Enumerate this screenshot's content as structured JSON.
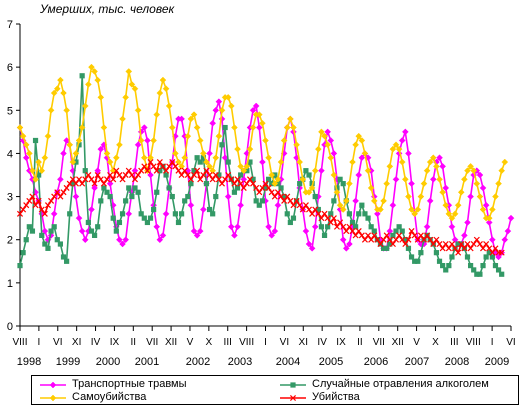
{
  "chart_data": {
    "type": "line",
    "ylabel": "Умерших, тыс. человек",
    "ylim": [
      0,
      7
    ],
    "yticks": [
      0,
      1,
      2,
      3,
      4,
      5,
      6,
      7
    ],
    "grid": false,
    "legend_position": "bottom",
    "start_month_label": "VIII 1998",
    "month_ticks": [
      "VIII",
      "I",
      "VI",
      "XI",
      "IV",
      "IX",
      "II",
      "VII",
      "XII",
      "V",
      "X",
      "III",
      "VIII",
      "I",
      "VI",
      "XI",
      "IV",
      "IX",
      "II",
      "VII",
      "XII",
      "V",
      "X",
      "III",
      "VIII",
      "I",
      "VI"
    ],
    "year_labels": [
      "1998",
      "1999",
      "2000",
      "2001",
      "2002",
      "2003",
      "2004",
      "2005",
      "2006",
      "2007",
      "2008",
      "2009"
    ],
    "series": [
      {
        "name": "Транспортные травмы",
        "color": "#ff00ff",
        "marker": "diamond",
        "values": [
          4.6,
          4.3,
          3.9,
          3.6,
          3.4,
          3.1,
          2.9,
          2.6,
          2.2,
          2.0,
          2.1,
          2.6,
          3.1,
          3.4,
          4.0,
          4.3,
          4.2,
          3.6,
          3.0,
          2.5,
          2.2,
          2.0,
          2.2,
          2.7,
          3.2,
          3.6,
          4.1,
          4.2,
          3.9,
          3.3,
          2.8,
          2.3,
          2.0,
          1.9,
          2.0,
          2.6,
          3.1,
          3.6,
          4.2,
          4.5,
          4.6,
          4.3,
          3.5,
          2.8,
          2.3,
          2.0,
          2.1,
          2.6,
          3.2,
          3.8,
          4.4,
          4.8,
          4.8,
          4.4,
          3.6,
          2.8,
          2.2,
          2.1,
          2.2,
          2.7,
          3.3,
          4.0,
          4.7,
          5.0,
          5.2,
          4.8,
          3.9,
          3.0,
          2.3,
          2.1,
          2.3,
          2.8,
          3.4,
          4.0,
          4.6,
          5.0,
          5.1,
          4.6,
          3.8,
          2.9,
          2.3,
          2.1,
          2.2,
          2.8,
          3.4,
          4.0,
          4.6,
          4.8,
          4.5,
          3.9,
          3.2,
          2.7,
          2.2,
          1.9,
          1.8,
          2.3,
          3.0,
          3.6,
          4.2,
          4.5,
          4.3,
          4.0,
          3.4,
          2.7,
          2.0,
          1.8,
          1.9,
          2.3,
          2.9,
          3.5,
          3.9,
          4.0,
          3.9,
          3.6,
          3.0,
          2.6,
          2.0,
          1.8,
          1.8,
          2.2,
          2.8,
          3.4,
          4.0,
          4.3,
          4.5,
          4.0,
          3.3,
          2.6,
          2.0,
          1.9,
          1.9,
          2.3,
          2.9,
          3.4,
          3.8,
          3.9,
          3.7,
          3.2,
          2.8,
          2.3,
          2.0,
          1.9,
          1.9,
          2.1,
          2.4,
          3.0,
          3.5,
          3.6,
          3.5,
          3.2,
          2.8,
          2.4,
          2.0,
          1.7,
          1.6,
          1.7,
          2.0,
          2.2,
          2.5
        ]
      },
      {
        "name": "Случайные отравления алкоголем",
        "color": "#339966",
        "marker": "square",
        "values": [
          1.4,
          1.7,
          2.0,
          2.3,
          2.2,
          4.3,
          3.5,
          2.1,
          1.9,
          1.8,
          2.2,
          2.3,
          2.0,
          1.9,
          1.6,
          1.5,
          2.6,
          3.3,
          3.8,
          4.2,
          5.8,
          3.6,
          2.4,
          2.2,
          2.1,
          2.3,
          2.9,
          3.2,
          3.1,
          3.0,
          2.5,
          2.2,
          2.4,
          2.6,
          2.9,
          3.2,
          3.0,
          3.2,
          3.1,
          2.6,
          2.5,
          2.4,
          2.5,
          2.7,
          3.1,
          3.6,
          3.7,
          3.5,
          3.2,
          3.0,
          2.6,
          2.4,
          2.6,
          2.9,
          3.0,
          3.3,
          3.6,
          3.9,
          3.8,
          3.9,
          3.3,
          2.7,
          2.6,
          3.0,
          3.5,
          4.2,
          4.6,
          3.8,
          3.4,
          3.1,
          3.2,
          3.5,
          3.6,
          3.6,
          3.8,
          3.4,
          2.9,
          2.8,
          2.9,
          3.2,
          3.4,
          3.3,
          3.5,
          3.3,
          3.2,
          3.0,
          2.6,
          2.4,
          2.5,
          2.9,
          3.3,
          3.4,
          3.6,
          3.5,
          3.3,
          3.0,
          2.7,
          2.3,
          2.1,
          2.3,
          2.6,
          2.9,
          3.2,
          3.4,
          3.3,
          2.9,
          2.6,
          2.4,
          2.3,
          2.6,
          2.8,
          2.6,
          2.5,
          2.3,
          2.2,
          2.0,
          1.9,
          1.8,
          1.8,
          1.9,
          2.1,
          2.2,
          2.3,
          2.2,
          2.0,
          1.8,
          1.6,
          1.5,
          1.5,
          1.7,
          2.0,
          2.1,
          2.0,
          1.9,
          1.7,
          1.5,
          1.4,
          1.3,
          1.4,
          1.6,
          1.8,
          1.9,
          1.9,
          1.8,
          1.6,
          1.4,
          1.3,
          1.2,
          1.2,
          1.4,
          1.6,
          1.7,
          1.6,
          1.4,
          1.3,
          1.2
        ]
      },
      {
        "name": "Самоубийства",
        "color": "#ffcc00",
        "marker": "diamond",
        "values": [
          4.6,
          4.4,
          4.2,
          4.0,
          3.6,
          3.4,
          3.8,
          3.6,
          3.9,
          4.4,
          5.0,
          5.4,
          5.5,
          5.7,
          5.4,
          5.0,
          4.2,
          3.8,
          4.0,
          4.3,
          4.6,
          5.1,
          5.6,
          6.0,
          5.9,
          5.7,
          5.3,
          4.6,
          4.0,
          3.8,
          3.6,
          3.9,
          4.2,
          4.8,
          5.3,
          5.9,
          5.6,
          5.5,
          5.0,
          4.3,
          3.9,
          3.6,
          3.9,
          4.3,
          4.9,
          5.4,
          5.7,
          5.5,
          5.1,
          4.6,
          4.0,
          3.8,
          3.7,
          3.9,
          4.4,
          4.8,
          4.9,
          4.6,
          4.3,
          4.0,
          3.8,
          3.7,
          3.6,
          3.9,
          4.4,
          5.0,
          5.3,
          5.3,
          5.1,
          4.6,
          4.1,
          3.7,
          3.6,
          3.7,
          4.1,
          4.6,
          4.9,
          4.9,
          4.7,
          4.3,
          3.9,
          3.5,
          3.3,
          3.4,
          3.8,
          4.3,
          4.6,
          4.8,
          4.6,
          4.2,
          3.8,
          3.4,
          3.1,
          3.1,
          3.2,
          3.6,
          4.1,
          4.5,
          4.4,
          4.2,
          3.9,
          3.5,
          3.1,
          2.8,
          2.7,
          2.9,
          3.3,
          3.8,
          4.2,
          4.4,
          4.3,
          4.0,
          3.6,
          3.2,
          2.9,
          2.7,
          2.7,
          2.9,
          3.3,
          3.7,
          4.1,
          4.2,
          4.1,
          3.8,
          3.4,
          3.0,
          2.7,
          2.6,
          2.7,
          3.0,
          3.3,
          3.6,
          3.8,
          3.9,
          3.7,
          3.4,
          3.1,
          2.8,
          2.6,
          2.5,
          2.6,
          2.8,
          3.1,
          3.4,
          3.6,
          3.7,
          3.6,
          3.3,
          3.0,
          2.7,
          2.5,
          2.5,
          2.7,
          3.0,
          3.3,
          3.6,
          3.8
        ]
      },
      {
        "name": "Убийства",
        "color": "#ff0000",
        "marker": "x",
        "values": [
          2.6,
          2.7,
          2.8,
          2.9,
          3.0,
          2.8,
          2.9,
          2.7,
          2.6,
          2.8,
          2.9,
          3.0,
          3.1,
          3.0,
          3.1,
          3.2,
          3.3,
          3.4,
          3.3,
          3.4,
          3.3,
          3.4,
          3.5,
          3.4,
          3.3,
          3.5,
          3.4,
          3.3,
          3.4,
          3.5,
          3.4,
          3.6,
          3.5,
          3.4,
          3.5,
          3.6,
          3.5,
          3.4,
          3.5,
          3.6,
          3.7,
          3.6,
          3.8,
          3.7,
          3.6,
          3.8,
          3.7,
          3.6,
          3.7,
          3.8,
          3.7,
          3.6,
          3.5,
          3.6,
          3.5,
          3.4,
          3.5,
          3.6,
          3.4,
          3.5,
          3.6,
          3.5,
          3.4,
          3.5,
          3.4,
          3.3,
          3.4,
          3.5,
          3.4,
          3.3,
          3.4,
          3.3,
          3.2,
          3.3,
          3.4,
          3.3,
          3.2,
          3.1,
          3.2,
          3.3,
          3.2,
          3.1,
          3.0,
          3.1,
          3.0,
          2.9,
          3.0,
          2.9,
          2.8,
          2.9,
          2.8,
          2.7,
          2.8,
          2.7,
          2.6,
          2.7,
          2.6,
          2.5,
          2.6,
          2.5,
          2.4,
          2.5,
          2.3,
          2.4,
          2.3,
          2.2,
          2.3,
          2.2,
          2.1,
          2.2,
          2.1,
          2.0,
          2.1,
          2.0,
          2.1,
          2.0,
          1.9,
          2.0,
          2.1,
          2.0,
          1.9,
          2.0,
          2.1,
          2.0,
          1.9,
          2.0,
          2.2,
          2.1,
          2.0,
          2.1,
          2.0,
          2.1,
          2.0,
          1.9,
          2.0,
          1.9,
          1.8,
          1.9,
          1.8,
          1.9,
          1.8,
          1.7,
          1.9,
          1.8,
          1.9,
          1.8,
          1.9,
          2.0,
          1.9,
          1.8,
          1.9,
          1.8,
          1.7,
          1.8,
          1.7,
          1.7
        ]
      }
    ]
  }
}
